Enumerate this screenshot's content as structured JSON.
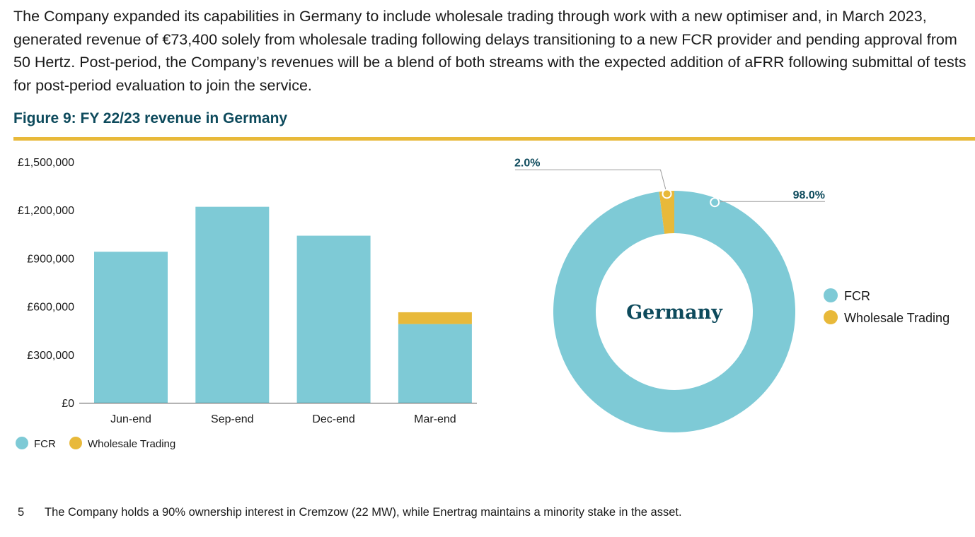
{
  "intro_text": "The Company expanded its capabilities in Germany to include wholesale trading through work with a new optimiser and, in March 2023, generated revenue of €73,400 solely from wholesale trading following delays transitioning to a new FCR provider and pending approval from 50 Hertz. Post-period, the Company’s revenues will be a blend of both streams with the expected addition of aFRR following submittal of tests for post-period evaluation to join the service.",
  "figure_title": "Figure 9: FY 22/23 revenue in Germany",
  "colors": {
    "fcr": "#7ecad6",
    "wholesale": "#e8b93a",
    "accent": "#0d4a5c"
  },
  "chart_data": [
    {
      "type": "bar",
      "stacked": true,
      "title": "",
      "categories": [
        "Jun-end",
        "Sep-end",
        "Dec-end",
        "Mar-end"
      ],
      "series": [
        {
          "name": "FCR",
          "values": [
            940000,
            1220000,
            1040000,
            490000
          ]
        },
        {
          "name": "Wholesale Trading",
          "values": [
            0,
            0,
            0,
            73400
          ]
        }
      ],
      "ylim": [
        0,
        1500000
      ],
      "yticks": [
        0,
        300000,
        600000,
        900000,
        1200000,
        1500000
      ],
      "ytick_labels": [
        "£0",
        "£300,000",
        "£600,000",
        "£900,000",
        "£1,200,000",
        "£1,500,000"
      ],
      "legend": [
        "FCR",
        "Wholesale Trading"
      ],
      "legend_position": "bottom-left"
    },
    {
      "type": "pie",
      "donut": true,
      "center_label": "Germany",
      "labels": [
        "FCR",
        "Wholesale Trading"
      ],
      "values": [
        98.0,
        2.0
      ],
      "value_labels": [
        "98.0%",
        "2.0%"
      ],
      "legend": [
        "FCR",
        "Wholesale Trading"
      ],
      "legend_position": "right"
    }
  ],
  "footnote": {
    "number": "5",
    "text": "The Company holds a 90% ownership interest in Cremzow (22 MW), while Enertrag maintains a minority stake in the asset."
  }
}
